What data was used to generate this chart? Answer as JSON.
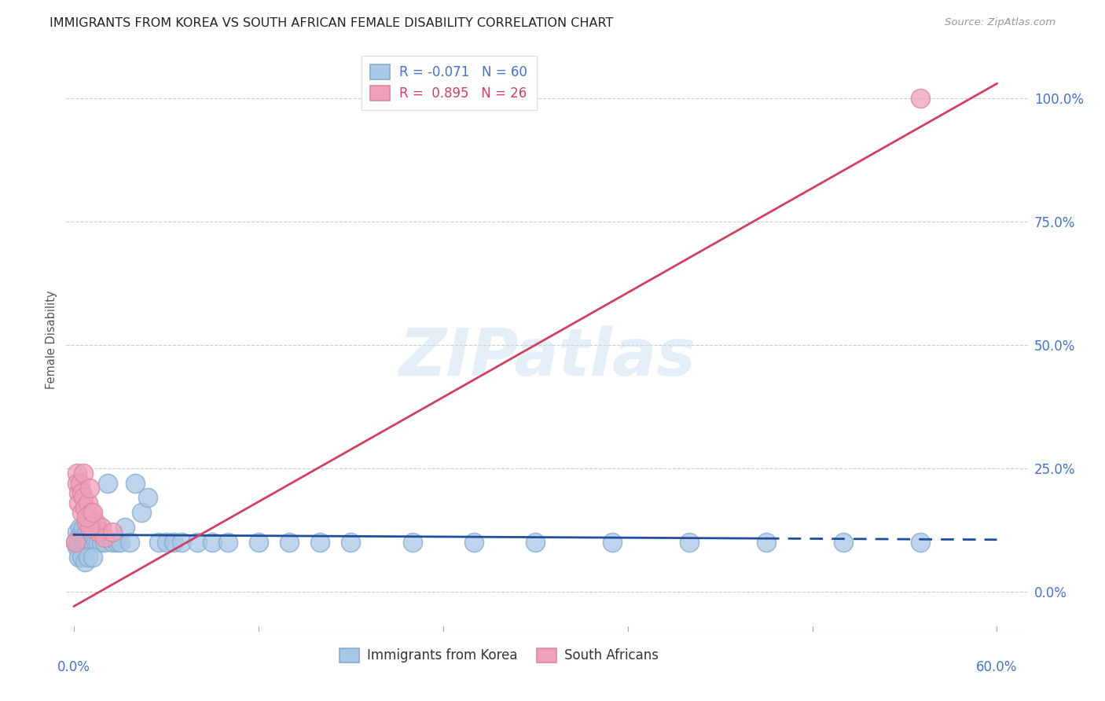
{
  "title": "IMMIGRANTS FROM KOREA VS SOUTH AFRICAN FEMALE DISABILITY CORRELATION CHART",
  "source": "Source: ZipAtlas.com",
  "ylabel": "Female Disability",
  "ytick_labels": [
    "0.0%",
    "25.0%",
    "50.0%",
    "75.0%",
    "100.0%"
  ],
  "ytick_values": [
    0.0,
    0.25,
    0.5,
    0.75,
    1.0
  ],
  "xlim": [
    -0.005,
    0.62
  ],
  "ylim": [
    -0.08,
    1.1
  ],
  "legend_R1": "R = -0.071",
  "legend_N1": "N = 60",
  "legend_R2": "R =  0.895",
  "legend_N2": "N = 26",
  "korea_color": "#a8c8e8",
  "sa_color": "#f0a0b8",
  "korea_edge_color": "#88aacc",
  "sa_edge_color": "#d888a0",
  "korea_line_color": "#1f4e9a",
  "sa_line_color": "#d04060",
  "watermark": "ZIPatlas",
  "korea_x": [
    0.001,
    0.002,
    0.002,
    0.003,
    0.003,
    0.004,
    0.004,
    0.005,
    0.005,
    0.006,
    0.006,
    0.007,
    0.007,
    0.008,
    0.008,
    0.009,
    0.009,
    0.01,
    0.01,
    0.011,
    0.012,
    0.013,
    0.014,
    0.015,
    0.016,
    0.018,
    0.02,
    0.022,
    0.025,
    0.028,
    0.03,
    0.033,
    0.036,
    0.04,
    0.044,
    0.048,
    0.055,
    0.06,
    0.065,
    0.07,
    0.08,
    0.09,
    0.1,
    0.12,
    0.14,
    0.16,
    0.18,
    0.22,
    0.26,
    0.3,
    0.35,
    0.4,
    0.45,
    0.5,
    0.55,
    0.003,
    0.005,
    0.007,
    0.009,
    0.012
  ],
  "korea_y": [
    0.1,
    0.12,
    0.09,
    0.11,
    0.1,
    0.13,
    0.1,
    0.12,
    0.11,
    0.1,
    0.13,
    0.11,
    0.1,
    0.12,
    0.09,
    0.11,
    0.1,
    0.13,
    0.1,
    0.12,
    0.1,
    0.11,
    0.1,
    0.13,
    0.1,
    0.1,
    0.1,
    0.22,
    0.1,
    0.1,
    0.1,
    0.13,
    0.1,
    0.22,
    0.16,
    0.19,
    0.1,
    0.1,
    0.1,
    0.1,
    0.1,
    0.1,
    0.1,
    0.1,
    0.1,
    0.1,
    0.1,
    0.1,
    0.1,
    0.1,
    0.1,
    0.1,
    0.1,
    0.1,
    0.1,
    0.07,
    0.07,
    0.06,
    0.07,
    0.07
  ],
  "sa_x": [
    0.001,
    0.002,
    0.002,
    0.003,
    0.003,
    0.004,
    0.005,
    0.005,
    0.006,
    0.007,
    0.008,
    0.009,
    0.01,
    0.011,
    0.012,
    0.014,
    0.016,
    0.018,
    0.02,
    0.025,
    0.01,
    0.008,
    0.012,
    0.006,
    0.01,
    0.55
  ],
  "sa_y": [
    0.1,
    0.24,
    0.22,
    0.2,
    0.18,
    0.22,
    0.2,
    0.16,
    0.19,
    0.17,
    0.14,
    0.18,
    0.15,
    0.16,
    0.13,
    0.14,
    0.12,
    0.13,
    0.11,
    0.12,
    0.13,
    0.15,
    0.16,
    0.24,
    0.21,
    1.0
  ],
  "korea_line_x0": 0.0,
  "korea_line_x1": 0.6,
  "korea_line_y0": 0.115,
  "korea_line_y1": 0.105,
  "sa_line_x0": 0.0,
  "sa_line_x1": 0.6,
  "sa_line_y0": -0.03,
  "sa_line_y1": 1.03
}
